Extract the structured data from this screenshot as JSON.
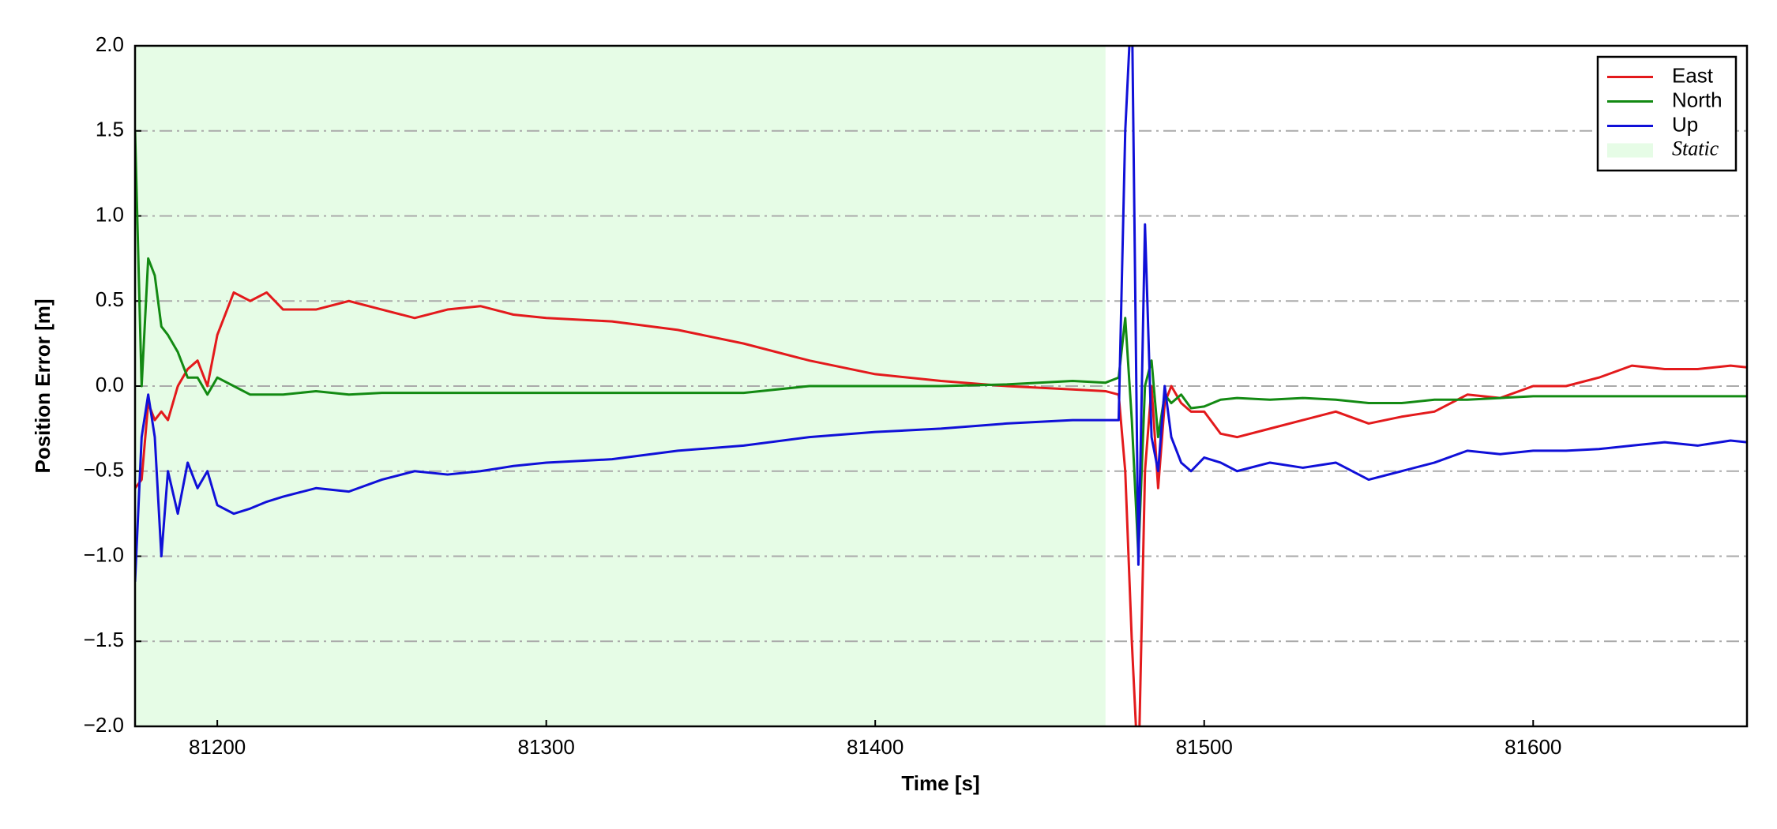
{
  "chart_data": {
    "type": "line",
    "xlabel": "Time [s]",
    "ylabel": "Position Error [m]",
    "x": [
      81175,
      81177,
      81179,
      81181,
      81183,
      81185,
      81188,
      81191,
      81194,
      81197,
      81200,
      81205,
      81210,
      81215,
      81220,
      81230,
      81240,
      81250,
      81260,
      81270,
      81280,
      81290,
      81300,
      81320,
      81340,
      81360,
      81380,
      81400,
      81420,
      81440,
      81460,
      81470,
      81474,
      81476,
      81478,
      81480,
      81482,
      81484,
      81486,
      81488,
      81490,
      81493,
      81496,
      81500,
      81505,
      81510,
      81520,
      81530,
      81540,
      81550,
      81560,
      81570,
      81580,
      81590,
      81600,
      81610,
      81620,
      81630,
      81640,
      81650,
      81660,
      81665
    ],
    "series": [
      {
        "name": "East",
        "color": "#e31a1c",
        "values": [
          -0.6,
          -0.55,
          -0.1,
          -0.2,
          -0.15,
          -0.2,
          0.0,
          0.1,
          0.15,
          0.0,
          0.3,
          0.55,
          0.5,
          0.55,
          0.45,
          0.45,
          0.5,
          0.45,
          0.4,
          0.45,
          0.47,
          0.42,
          0.4,
          0.38,
          0.33,
          0.25,
          0.15,
          0.07,
          0.03,
          0.0,
          -0.02,
          -0.03,
          -0.05,
          -0.5,
          -1.5,
          -2.3,
          -0.5,
          0.0,
          -0.6,
          -0.1,
          0.0,
          -0.1,
          -0.15,
          -0.15,
          -0.28,
          -0.3,
          -0.25,
          -0.2,
          -0.15,
          -0.22,
          -0.18,
          -0.15,
          -0.05,
          -0.07,
          0.0,
          0.0,
          0.05,
          0.12,
          0.1,
          0.1,
          0.12,
          0.11
        ]
      },
      {
        "name": "North",
        "color": "#138a13",
        "values": [
          1.5,
          0.0,
          0.75,
          0.65,
          0.35,
          0.3,
          0.2,
          0.05,
          0.05,
          -0.05,
          0.05,
          0.0,
          -0.05,
          -0.05,
          -0.05,
          -0.03,
          -0.05,
          -0.04,
          -0.04,
          -0.04,
          -0.04,
          -0.04,
          -0.04,
          -0.04,
          -0.04,
          -0.04,
          0.0,
          0.0,
          0.0,
          0.01,
          0.03,
          0.02,
          0.05,
          0.4,
          -0.2,
          -1.0,
          0.0,
          0.15,
          -0.3,
          -0.05,
          -0.1,
          -0.05,
          -0.13,
          -0.12,
          -0.08,
          -0.07,
          -0.08,
          -0.07,
          -0.08,
          -0.1,
          -0.1,
          -0.08,
          -0.08,
          -0.07,
          -0.06,
          -0.06,
          -0.06,
          -0.06,
          -0.06,
          -0.06,
          -0.06,
          -0.06
        ]
      },
      {
        "name": "Up",
        "color": "#1010d8",
        "values": [
          -1.15,
          -0.3,
          -0.05,
          -0.3,
          -1.0,
          -0.5,
          -0.75,
          -0.45,
          -0.6,
          -0.5,
          -0.7,
          -0.75,
          -0.72,
          -0.68,
          -0.65,
          -0.6,
          -0.62,
          -0.55,
          -0.5,
          -0.52,
          -0.5,
          -0.47,
          -0.45,
          -0.43,
          -0.38,
          -0.35,
          -0.3,
          -0.27,
          -0.25,
          -0.22,
          -0.2,
          -0.2,
          -0.2,
          1.5,
          2.3,
          -1.05,
          0.95,
          -0.3,
          -0.5,
          0.0,
          -0.3,
          -0.45,
          -0.5,
          -0.42,
          -0.45,
          -0.5,
          -0.45,
          -0.48,
          -0.45,
          -0.55,
          -0.5,
          -0.45,
          -0.38,
          -0.4,
          -0.38,
          -0.38,
          -0.37,
          -0.35,
          -0.33,
          -0.35,
          -0.32,
          -0.33
        ]
      }
    ],
    "span": {
      "name": "Static",
      "start": 81175,
      "end": 81470,
      "color": "#e6fce6"
    },
    "xlim": [
      81175,
      81665
    ],
    "xticks": [
      81200,
      81300,
      81400,
      81500,
      81600
    ],
    "ylim": [
      -2.0,
      2.0
    ],
    "yticks": [
      {
        "value": -2.0,
        "label": "−2.0"
      },
      {
        "value": -1.5,
        "label": "−1.5"
      },
      {
        "value": -1.0,
        "label": "−1.0"
      },
      {
        "value": -0.5,
        "label": "−0.5"
      },
      {
        "value": 0.0,
        "label": "0.0"
      },
      {
        "value": 0.5,
        "label": "0.5"
      },
      {
        "value": 1.0,
        "label": "1.0"
      },
      {
        "value": 1.5,
        "label": "1.5"
      },
      {
        "value": 2.0,
        "label": "2.0"
      }
    ],
    "grid": true,
    "legend": "upper right"
  }
}
